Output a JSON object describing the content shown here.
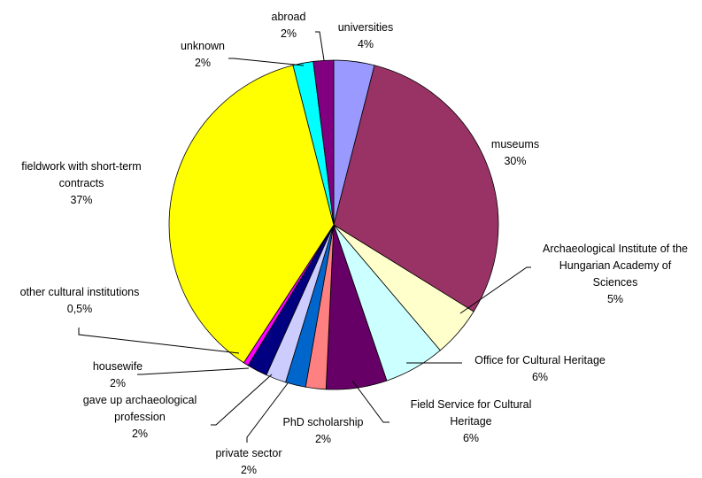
{
  "chart_data": {
    "type": "pie",
    "title": "",
    "slices": [
      {
        "label": "universities",
        "value_label": "4%",
        "value": 4,
        "color": "#9999ff"
      },
      {
        "label": "museums",
        "value_label": "30%",
        "value": 30,
        "color": "#993366"
      },
      {
        "label": "Archaeological Institute of the Hungarian Academy of Sciences",
        "label_lines": [
          "Archaeological Institute of the",
          "Hungarian Academy of",
          "Sciences"
        ],
        "value_label": "5%",
        "value": 5,
        "color": "#ffffcc"
      },
      {
        "label": "Office for Cultural Heritage",
        "value_label": "6%",
        "value": 6,
        "color": "#ccffff"
      },
      {
        "label": "Field Service for Cultural Heritage",
        "label_lines": [
          "Field Service for Cultural",
          "Heritage"
        ],
        "value_label": "6%",
        "value": 6,
        "color": "#660066"
      },
      {
        "label": "PhD scholarship",
        "value_label": "2%",
        "value": 2,
        "color": "#ff8080"
      },
      {
        "label": "private sector",
        "value_label": "2%",
        "value": 2,
        "color": "#0066cc"
      },
      {
        "label": "gave up archaeological profession",
        "label_lines": [
          "gave up archaeological",
          "profession"
        ],
        "value_label": "2%",
        "value": 2,
        "color": "#ccccff"
      },
      {
        "label": "housewife",
        "value_label": "2%",
        "value": 2,
        "color": "#000080"
      },
      {
        "label": "other cultural institutions",
        "value_label": "0,5%",
        "value": 0.5,
        "color": "#ff00ff"
      },
      {
        "label": "fieldwork with short-term contracts",
        "label_lines": [
          "fieldwork with short-term",
          "contracts"
        ],
        "value_label": "37%",
        "value": 37,
        "color": "#ffff00"
      },
      {
        "label": "unknown",
        "value_label": "2%",
        "value": 2,
        "color": "#00ffff"
      },
      {
        "label": "abroad",
        "value_label": "2%",
        "value": 2,
        "color": "#800080"
      }
    ]
  }
}
